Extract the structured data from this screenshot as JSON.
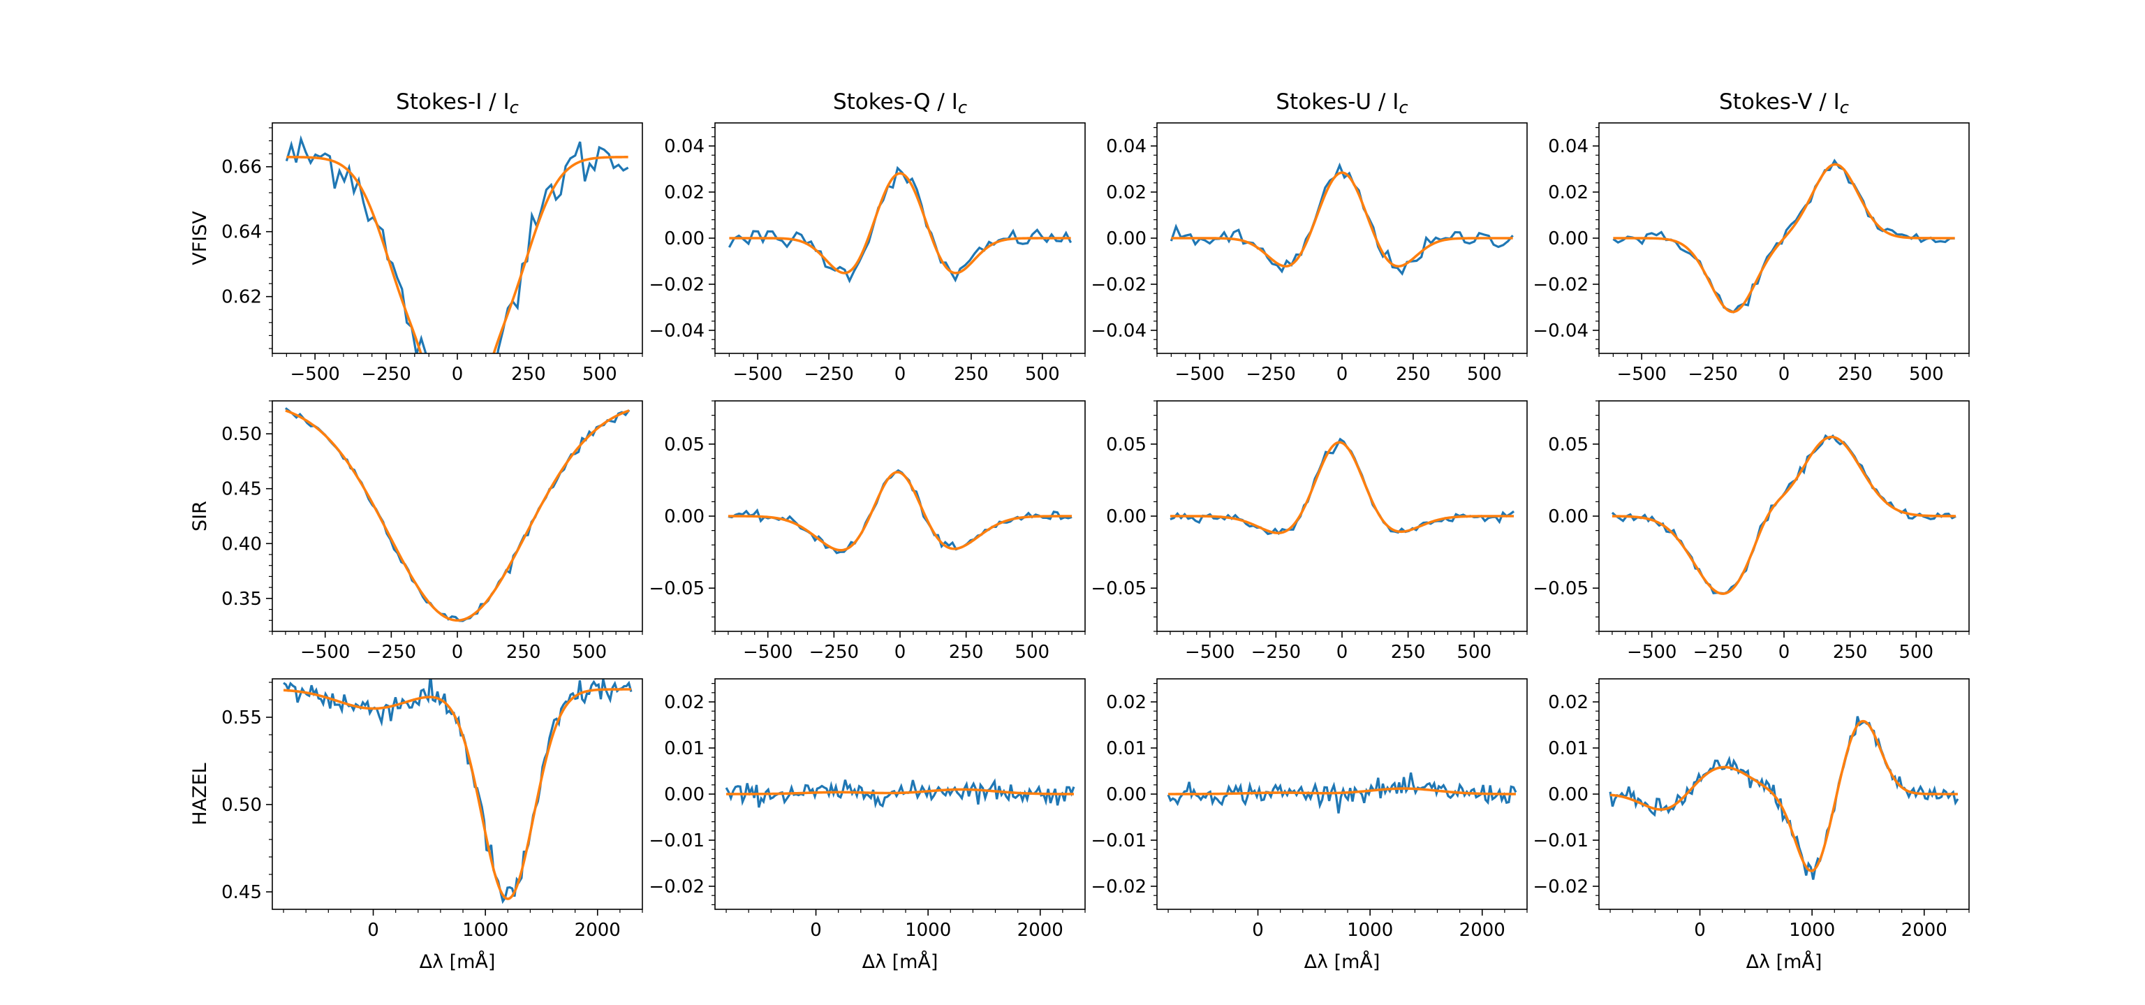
{
  "colors": {
    "observed": "#1f77b4",
    "fit": "#ff7f0e",
    "axis": "#000000"
  },
  "column_titles": [
    {
      "prefix": "Stokes-I / I",
      "sub": "c"
    },
    {
      "prefix": "Stokes-Q / I",
      "sub": "c"
    },
    {
      "prefix": "Stokes-U / I",
      "sub": "c"
    },
    {
      "prefix": "Stokes-V / I",
      "sub": "c"
    }
  ],
  "row_labels": [
    "VFISV",
    "SIR",
    "HAZEL"
  ],
  "x_label": "Δλ [mÅ]",
  "chart_data": [
    {
      "type": "line",
      "row": 0,
      "col": 0,
      "row_label": "VFISV",
      "title": "Stokes-I / Ic",
      "xlim": [
        -650,
        650
      ],
      "ylim": [
        0.6025,
        0.6735
      ],
      "xticks": [
        -500,
        -250,
        0,
        250,
        500
      ],
      "yticks": [
        0.62,
        0.64,
        0.66
      ],
      "yticks_labels": [
        "0.62",
        "0.64",
        "0.66"
      ],
      "xlabel": "",
      "model": {
        "kind": "I",
        "cont": 0.663,
        "lines": [
          [
            -140,
            0.048,
            110
          ],
          [
            0,
            0.055,
            70
          ],
          [
            140,
            0.048,
            110
          ]
        ]
      },
      "noise": 0.004,
      "x": [
        -600,
        600
      ],
      "n": 72
    },
    {
      "type": "line",
      "row": 0,
      "col": 1,
      "row_label": "VFISV",
      "title": "Stokes-Q / Ic",
      "xlim": [
        -650,
        650
      ],
      "ylim": [
        -0.05,
        0.05
      ],
      "xticks": [
        -500,
        -250,
        0,
        250,
        500
      ],
      "yticks": [
        -0.04,
        -0.02,
        0,
        0.02,
        0.04
      ],
      "yticks_labels": [
        "−0.04",
        "−0.02",
        "0.00",
        "0.02",
        "0.04"
      ],
      "xlabel": "",
      "model": {
        "kind": "sum",
        "terms": [
          [
            0,
            0.03,
            80
          ],
          [
            -180,
            -0.017,
            75
          ],
          [
            180,
            -0.017,
            75
          ]
        ]
      },
      "noise": 0.002,
      "x": [
        -600,
        600
      ],
      "n": 72
    },
    {
      "type": "line",
      "row": 0,
      "col": 2,
      "row_label": "VFISV",
      "title": "Stokes-U / Ic",
      "xlim": [
        -650,
        650
      ],
      "ylim": [
        -0.05,
        0.05
      ],
      "xticks": [
        -500,
        -250,
        0,
        250,
        500
      ],
      "yticks": [
        -0.04,
        -0.02,
        0,
        0.02,
        0.04
      ],
      "yticks_labels": [
        "−0.04",
        "−0.02",
        "0.00",
        "0.02",
        "0.04"
      ],
      "xlabel": "",
      "model": {
        "kind": "sum",
        "terms": [
          [
            0,
            0.03,
            80
          ],
          [
            -180,
            -0.014,
            75
          ],
          [
            180,
            -0.014,
            75
          ]
        ]
      },
      "noise": 0.002,
      "x": [
        -600,
        600
      ],
      "n": 72
    },
    {
      "type": "line",
      "row": 0,
      "col": 3,
      "row_label": "VFISV",
      "title": "Stokes-V / Ic",
      "xlim": [
        -650,
        650
      ],
      "ylim": [
        -0.05,
        0.05
      ],
      "xticks": [
        -500,
        -250,
        0,
        250,
        500
      ],
      "yticks": [
        -0.04,
        -0.02,
        0,
        0.02,
        0.04
      ],
      "yticks_labels": [
        "−0.04",
        "−0.02",
        "0.00",
        "0.02",
        "0.04"
      ],
      "xlabel": "",
      "model": {
        "kind": "sum",
        "terms": [
          [
            -180,
            -0.032,
            80
          ],
          [
            180,
            0.032,
            80
          ]
        ]
      },
      "noise": 0.0015,
      "x": [
        -600,
        600
      ],
      "n": 72
    },
    {
      "type": "line",
      "row": 1,
      "col": 0,
      "row_label": "SIR",
      "title": "Stokes-I / Ic",
      "xlim": [
        -700,
        700
      ],
      "ylim": [
        0.32,
        0.53
      ],
      "xticks": [
        -500,
        -250,
        0,
        250,
        500
      ],
      "yticks": [
        0.35,
        0.4,
        0.45,
        0.5
      ],
      "yticks_labels": [
        "0.35",
        "0.40",
        "0.45",
        "0.50"
      ],
      "xlabel": "",
      "model": {
        "kind": "I",
        "cont": 0.53,
        "lines": [
          [
            0,
            0.2,
            260
          ]
        ]
      },
      "noise": 0.002,
      "x": [
        -650,
        650
      ],
      "n": 96
    },
    {
      "type": "line",
      "row": 1,
      "col": 1,
      "row_label": "SIR",
      "title": "Stokes-Q / Ic",
      "xlim": [
        -700,
        700
      ],
      "ylim": [
        -0.08,
        0.08
      ],
      "xticks": [
        -500,
        -250,
        0,
        250,
        500
      ],
      "yticks": [
        -0.05,
        0,
        0.05
      ],
      "yticks_labels": [
        "−0.05",
        "0.00",
        "0.05"
      ],
      "xlabel": "",
      "model": {
        "kind": "sum",
        "terms": [
          [
            -10,
            0.042,
            85
          ],
          [
            -200,
            -0.026,
            110
          ],
          [
            180,
            -0.025,
            110
          ]
        ]
      },
      "noise": 0.0015,
      "x": [
        -650,
        650
      ],
      "n": 96
    },
    {
      "type": "line",
      "row": 1,
      "col": 2,
      "row_label": "SIR",
      "title": "Stokes-U / Ic",
      "xlim": [
        -700,
        700
      ],
      "ylim": [
        -0.08,
        0.08
      ],
      "xticks": [
        -500,
        -250,
        0,
        250,
        500
      ],
      "yticks": [
        -0.05,
        0,
        0.05
      ],
      "yticks_labels": [
        "−0.05",
        "0.00",
        "0.05"
      ],
      "xlabel": "",
      "model": {
        "kind": "sum",
        "terms": [
          [
            -10,
            0.056,
            90
          ],
          [
            -200,
            -0.015,
            100
          ],
          [
            180,
            -0.014,
            100
          ]
        ]
      },
      "noise": 0.0015,
      "x": [
        -650,
        650
      ],
      "n": 96
    },
    {
      "type": "line",
      "row": 1,
      "col": 3,
      "row_label": "SIR",
      "title": "Stokes-V / Ic",
      "xlim": [
        -700,
        700
      ],
      "ylim": [
        -0.08,
        0.08
      ],
      "xticks": [
        -500,
        -250,
        0,
        250,
        500
      ],
      "yticks": [
        -0.05,
        0,
        0.05
      ],
      "yticks_labels": [
        "−0.05",
        "0.00",
        "0.05"
      ],
      "xlabel": "",
      "model": {
        "kind": "sum",
        "terms": [
          [
            -230,
            -0.054,
            110
          ],
          [
            180,
            0.055,
            110
          ],
          [
            -60,
            0.012,
            55
          ],
          [
            0,
            0.0,
            400
          ]
        ],
        "slope": 0.0
      },
      "noise": 0.0015,
      "x": [
        -650,
        650
      ],
      "n": 96
    },
    {
      "type": "line",
      "row": 2,
      "col": 0,
      "row_label": "HAZEL",
      "title": "Stokes-I / Ic",
      "xlim": [
        -900,
        2400
      ],
      "ylim": [
        0.44,
        0.572
      ],
      "xticks": [
        0,
        1000,
        2000
      ],
      "yticks": [
        0.45,
        0.5,
        0.55
      ],
      "yticks_labels": [
        "0.45",
        "0.50",
        "0.55"
      ],
      "xlabel": "Δλ [mÅ]",
      "model": {
        "kind": "I",
        "cont": 0.566,
        "lines": [
          [
            1200,
            0.12,
            230
          ],
          [
            0,
            0.011,
            320
          ]
        ]
      },
      "noise": 0.004,
      "x": [
        -800,
        2300
      ],
      "n": 150
    },
    {
      "type": "line",
      "row": 2,
      "col": 1,
      "row_label": "HAZEL",
      "title": "Stokes-Q / Ic",
      "xlim": [
        -900,
        2400
      ],
      "ylim": [
        -0.025,
        0.025
      ],
      "xticks": [
        0,
        1000,
        2000
      ],
      "yticks": [
        -0.02,
        -0.01,
        0,
        0.01,
        0.02
      ],
      "yticks_labels": [
        "−0.02",
        "−0.01",
        "0.00",
        "0.01",
        "0.02"
      ],
      "xlabel": "Δλ [mÅ]",
      "model": {
        "kind": "sum",
        "terms": [
          [
            1300,
            0.001,
            300
          ],
          [
            200,
            0.0004,
            300
          ]
        ]
      },
      "noise": 0.0011,
      "x": [
        -800,
        2300
      ],
      "n": 150
    },
    {
      "type": "line",
      "row": 2,
      "col": 2,
      "row_label": "HAZEL",
      "title": "Stokes-U / Ic",
      "xlim": [
        -900,
        2400
      ],
      "ylim": [
        -0.025,
        0.025
      ],
      "xticks": [
        0,
        1000,
        2000
      ],
      "yticks": [
        -0.02,
        -0.01,
        0,
        0.01,
        0.02
      ],
      "yticks_labels": [
        "−0.02",
        "−0.01",
        "0.00",
        "0.01",
        "0.02"
      ],
      "xlabel": "Δλ [mÅ]",
      "model": {
        "kind": "sum",
        "terms": [
          [
            1300,
            0.0012,
            300
          ],
          [
            200,
            0.0003,
            300
          ]
        ]
      },
      "noise": 0.0011,
      "x": [
        -800,
        2300
      ],
      "n": 150
    },
    {
      "type": "line",
      "row": 2,
      "col": 3,
      "row_label": "HAZEL",
      "title": "Stokes-V / Ic",
      "xlim": [
        -900,
        2400
      ],
      "ylim": [
        -0.025,
        0.025
      ],
      "xticks": [
        0,
        1000,
        2000
      ],
      "yticks": [
        -0.02,
        -0.01,
        0,
        0.01,
        0.02
      ],
      "yticks_labels": [
        "−0.02",
        "−0.01",
        "0.00",
        "0.01",
        "0.02"
      ],
      "xlabel": "Δλ [mÅ]",
      "model": {
        "kind": "sum",
        "terms": [
          [
            -300,
            -0.004,
            200
          ],
          [
            200,
            0.006,
            250
          ],
          [
            1000,
            -0.017,
            150
          ],
          [
            1450,
            0.016,
            160
          ]
        ]
      },
      "noise": 0.0011,
      "x": [
        -800,
        2300
      ],
      "n": 150
    }
  ]
}
